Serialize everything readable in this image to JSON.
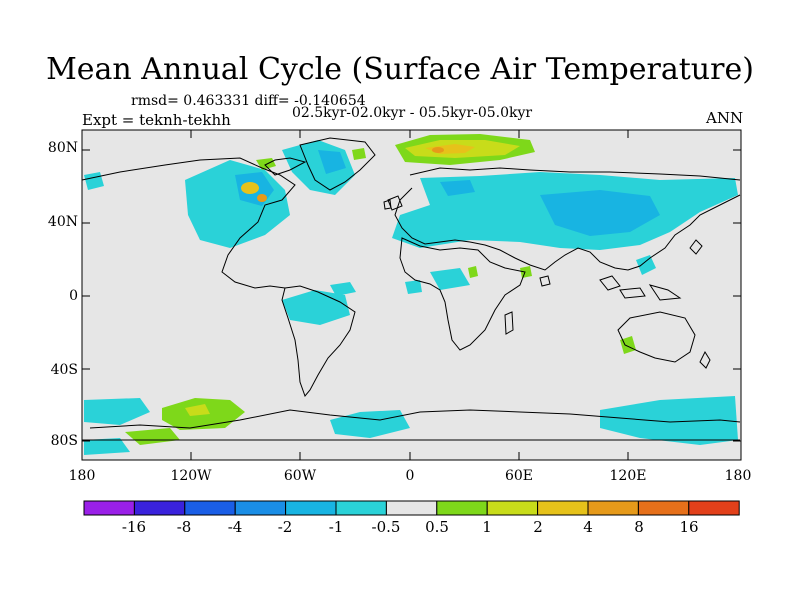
{
  "title": "Mean Annual Cycle (Surface Air Temperature)",
  "stats": "rmsd= 0.463331 diff= -0.140654",
  "experiment": "Expt = teknh-tekhh",
  "period": "02.5kyr-02.0kyr - 05.5kyr-05.0kyr",
  "season": "ANN",
  "lat_labels": [
    "80N",
    "40N",
    "0",
    "40S",
    "80S"
  ],
  "lon_labels": [
    "180",
    "120W",
    "60W",
    "0",
    "60E",
    "120E",
    "180"
  ],
  "colorbar": {
    "labels": [
      "-16",
      "-8",
      "-4",
      "-2",
      "-1",
      "-0.5",
      "0.5",
      "1",
      "2",
      "4",
      "8",
      "16"
    ],
    "colors": [
      "#9a20e8",
      "#3a22dc",
      "#1a5ee6",
      "#1a8ee6",
      "#18b4e2",
      "#2ad2d8",
      "#e6e6e6",
      "#7ed81a",
      "#c8dc1a",
      "#e6c21a",
      "#e69a1a",
      "#e6701a",
      "#e2401a"
    ]
  }
}
